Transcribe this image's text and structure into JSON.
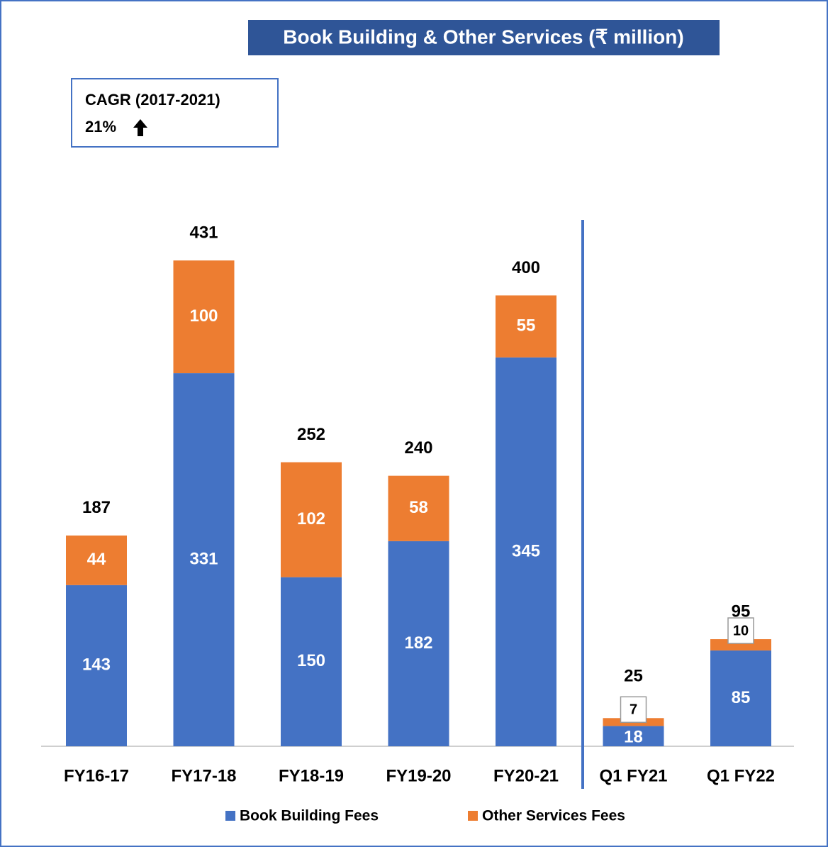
{
  "chart_data": {
    "type": "stacked_bar",
    "title": "Book Building & Other Services (₹ million)",
    "annotation": {
      "title": "CAGR (2017-2021)",
      "value": "21%"
    },
    "categories": [
      "FY16-17",
      "FY17-18",
      "FY18-19",
      "FY19-20",
      "FY20-21",
      "Q1 FY21",
      "Q1 FY22"
    ],
    "series": [
      {
        "name": "Book Building Fees",
        "color": "#4472c4",
        "values": [
          143,
          331,
          150,
          182,
          345,
          18,
          85
        ]
      },
      {
        "name": "Other Services Fees",
        "color": "#ed7d31",
        "values": [
          44,
          100,
          102,
          58,
          55,
          7,
          10
        ]
      }
    ],
    "totals": [
      187,
      431,
      252,
      240,
      400,
      25,
      95
    ],
    "ylim": [
      0,
      450
    ]
  }
}
